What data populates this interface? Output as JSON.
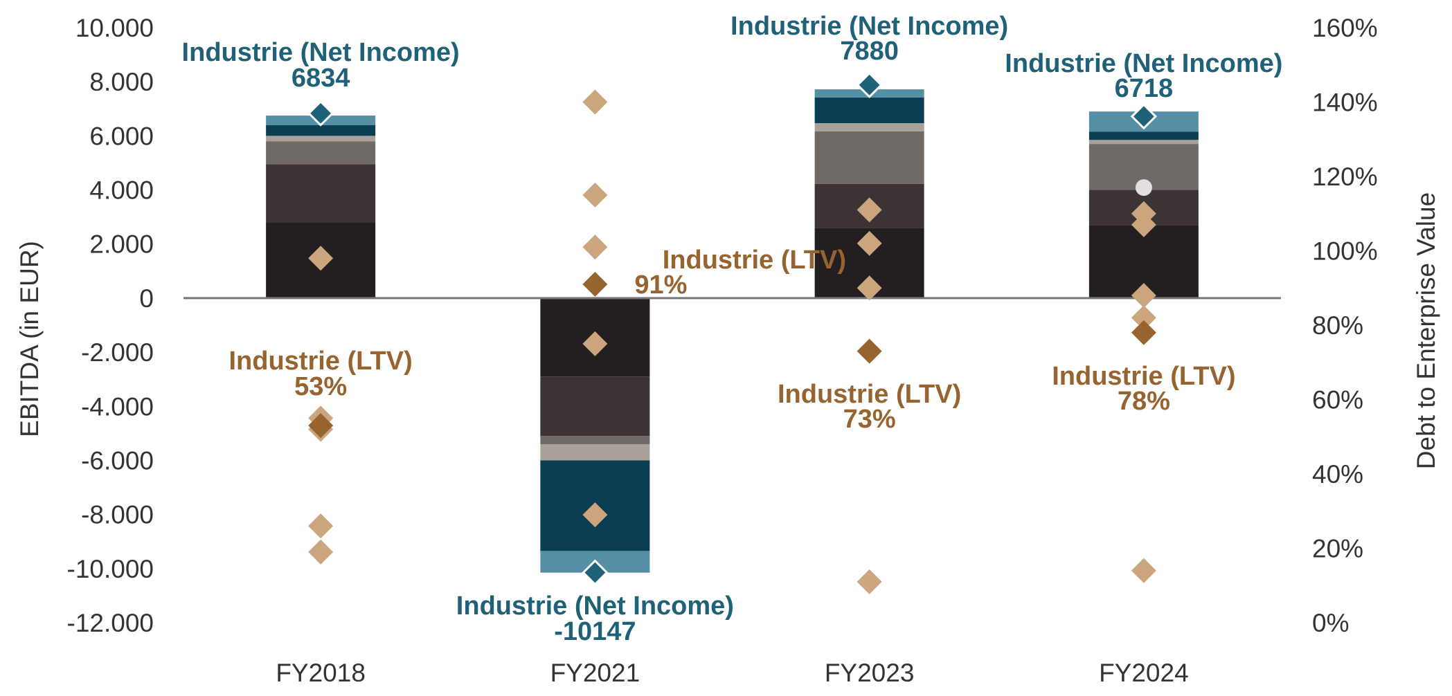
{
  "chart_data": {
    "type": "bar",
    "stacked": true,
    "categories": [
      "FY2018",
      "FY2021",
      "FY2023",
      "FY2024"
    ],
    "ylabel": "EBITDA (in EUR)",
    "y2label": "Debt to Enterprise Value",
    "ylim": [
      -12000,
      10000
    ],
    "y_ticks": [
      "10.000",
      "8.000",
      "6.000",
      "4.000",
      "2.000",
      "0",
      "-2.000",
      "-4.000",
      "-6.000",
      "-8.000",
      "-10.000",
      "-12.000"
    ],
    "y2lim": [
      0,
      1.6
    ],
    "y2_ticks": [
      "160%",
      "140%",
      "120%",
      "100%",
      "80%",
      "60%",
      "40%",
      "20%",
      "0%"
    ],
    "grid": false,
    "segment_colors": [
      "#231f20",
      "#3b3334",
      "#6f6a65",
      "#a8a199",
      "#0b3d53",
      "#558fa5"
    ],
    "segments": [
      [
        2800,
        2150,
        850,
        200,
        400,
        350
      ],
      [
        -2900,
        -2200,
        -300,
        -600,
        -3350,
        -800
      ],
      [
        2600,
        1620,
        1950,
        300,
        950,
        300
      ],
      [
        2700,
        1300,
        1700,
        150,
        300,
        750
      ]
    ],
    "net_income": {
      "label": "Industrie (Net Income)",
      "color": "#1f6178",
      "values": [
        6834,
        -10147,
        7880,
        6718
      ]
    },
    "ltv": {
      "label": "Industrie (LTV)",
      "color": "#97632f",
      "values": [
        0.53,
        0.91,
        0.73,
        0.78
      ],
      "display": [
        "53%",
        "91%",
        "73%",
        "78%"
      ]
    },
    "peer_points": {
      "color": "#caa57d",
      "values": [
        [
          0.98,
          0.55,
          0.52,
          0.26,
          0.19
        ],
        [
          1.4,
          1.15,
          1.01,
          0.75,
          0.29
        ],
        [
          1.11,
          1.02,
          0.9,
          0.11
        ],
        [
          1.1,
          1.07,
          0.88,
          0.82,
          0.14
        ]
      ]
    },
    "highlight_point": {
      "category": "FY2024",
      "value": 1.17,
      "color": "#e2e0de"
    }
  }
}
